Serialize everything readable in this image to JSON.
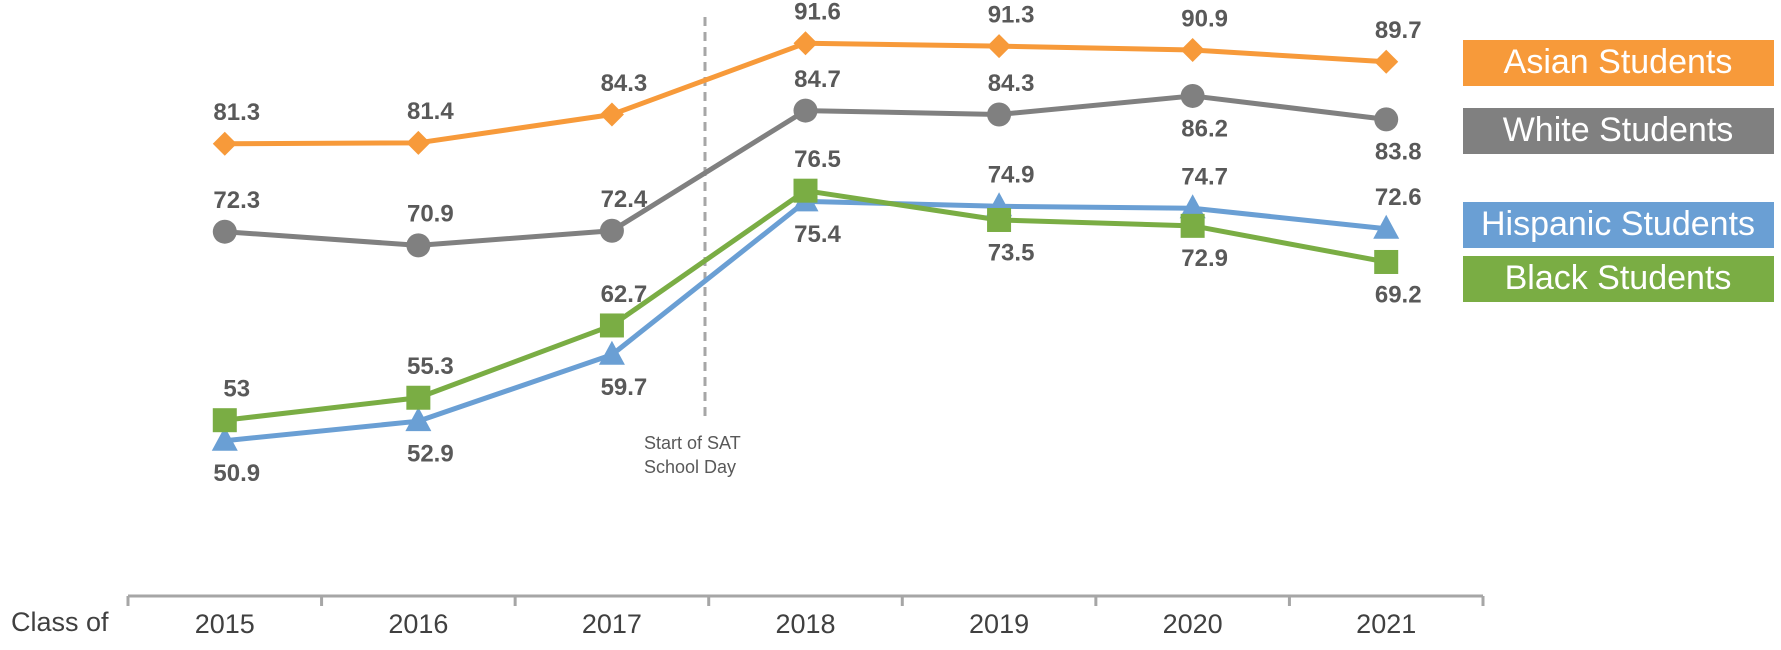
{
  "chart_data": {
    "type": "line",
    "x_label": "Class of",
    "categories": [
      "2015",
      "2016",
      "2017",
      "2018",
      "2019",
      "2020",
      "2021"
    ],
    "series": [
      {
        "name": "Asian Students",
        "color": "#f79a3a",
        "marker": "diamond",
        "values": [
          81.3,
          81.4,
          84.3,
          91.6,
          91.3,
          90.9,
          89.7
        ]
      },
      {
        "name": "White Students",
        "color": "#808080",
        "marker": "circle",
        "values": [
          72.3,
          70.9,
          72.4,
          84.7,
          84.3,
          86.2,
          83.8
        ]
      },
      {
        "name": "Hispanic Students",
        "color": "#6a9fd4",
        "marker": "triangle",
        "values": [
          50.9,
          52.9,
          59.7,
          75.4,
          74.9,
          74.7,
          72.6
        ]
      },
      {
        "name": "Black Students",
        "color": "#7aad44",
        "marker": "square",
        "values": [
          53.0,
          55.3,
          62.7,
          76.5,
          73.5,
          72.9,
          69.2
        ]
      }
    ],
    "ylim": [
      35,
      95
    ],
    "annotation": {
      "lines": [
        "Start of SAT",
        "School Day"
      ]
    },
    "legend": "right"
  }
}
